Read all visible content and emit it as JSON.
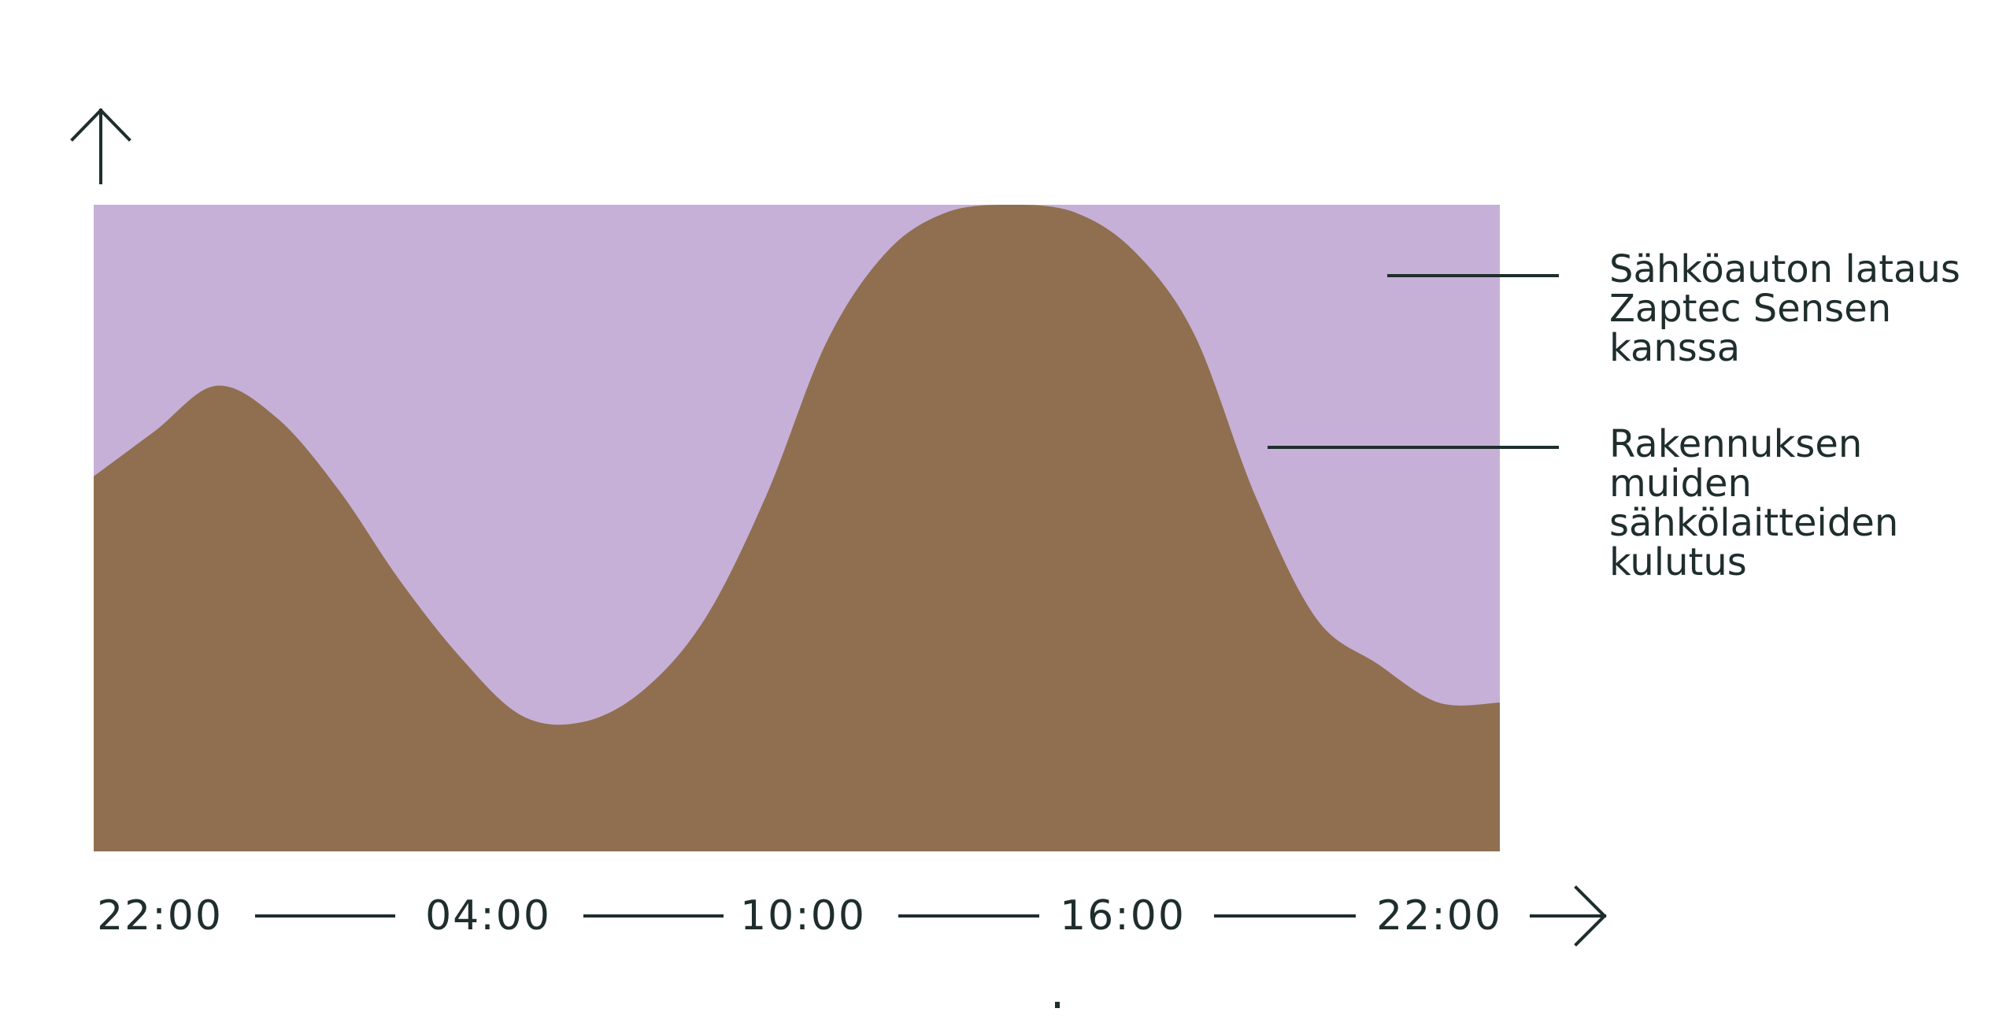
{
  "colors": {
    "background": "#ffffff",
    "ev_charging": "#c6b0d7",
    "building_load": "#8f6f4f",
    "ink": "#1f2d2d"
  },
  "icons": {
    "y_axis": "arrow-up-icon",
    "x_axis": "arrow-right-icon"
  },
  "chart_data": {
    "type": "area",
    "stacked": true,
    "x": [
      "22:00",
      "04:00",
      "10:00",
      "16:00",
      "22:00"
    ],
    "x_ticks": [
      "22:00",
      "04:00",
      "10:00",
      "16:00",
      "22:00"
    ],
    "xlabel": "",
    "ylabel": "",
    "ylim": [
      0,
      100
    ],
    "grid": false,
    "legend_position": "right",
    "series": [
      {
        "name": "Rakennuksen muiden sähkölaitteiden kulutus",
        "legend_lines": [
          "Rakennuksen",
          "muiden",
          "sähkölaitteiden",
          "kulutus"
        ],
        "color": "#8f6f4f",
        "points": [
          {
            "t": 0,
            "v": 58
          },
          {
            "t": 1,
            "v": 65
          },
          {
            "t": 2,
            "v": 72
          },
          {
            "t": 3,
            "v": 67
          },
          {
            "t": 4,
            "v": 56
          },
          {
            "t": 5,
            "v": 42
          },
          {
            "t": 6,
            "v": 30
          },
          {
            "t": 7,
            "v": 21
          },
          {
            "t": 8,
            "v": 20
          },
          {
            "t": 9,
            "v": 25
          },
          {
            "t": 10,
            "v": 36
          },
          {
            "t": 11,
            "v": 55
          },
          {
            "t": 12,
            "v": 79
          },
          {
            "t": 13,
            "v": 93
          },
          {
            "t": 14,
            "v": 99
          },
          {
            "t": 15,
            "v": 100
          },
          {
            "t": 16,
            "v": 99
          },
          {
            "t": 17,
            "v": 93
          },
          {
            "t": 18,
            "v": 80
          },
          {
            "t": 19,
            "v": 55
          },
          {
            "t": 20,
            "v": 36
          },
          {
            "t": 21,
            "v": 29
          },
          {
            "t": 22,
            "v": 23
          },
          {
            "t": 23,
            "v": 23
          }
        ]
      },
      {
        "name": "Sähköauton lataus Zaptec Sensen kanssa",
        "legend_lines": [
          "Sähköauton lataus",
          "Zaptec Sensen",
          "kanssa"
        ],
        "color": "#c6b0d7",
        "fills_to": 100
      }
    ]
  }
}
